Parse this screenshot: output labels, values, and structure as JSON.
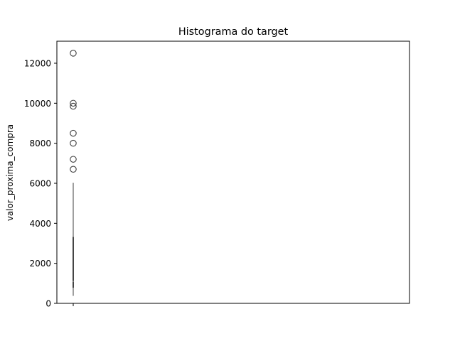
{
  "chart_data": {
    "type": "box",
    "title": "Histograma do target",
    "xlabel": "",
    "ylabel": "valor_proxima_compra",
    "ylim": [
      0,
      13100
    ],
    "yticks": [
      0,
      2000,
      4000,
      6000,
      8000,
      10000,
      12000
    ],
    "ytick_labels": [
      "0",
      "2000",
      "4000",
      "6000",
      "8000",
      "10000",
      "12000"
    ],
    "grid": false,
    "box": {
      "whisker_low": 400,
      "q1": 800,
      "median": 1100,
      "q3": 3300,
      "whisker_high": 6000
    },
    "outliers": [
      6700,
      7200,
      8000,
      8500,
      9850,
      10000,
      12500
    ],
    "colors": {
      "box_line": "#3f3f3f",
      "outlier_edge": "#3f3f3f",
      "axes": "#000000"
    }
  }
}
